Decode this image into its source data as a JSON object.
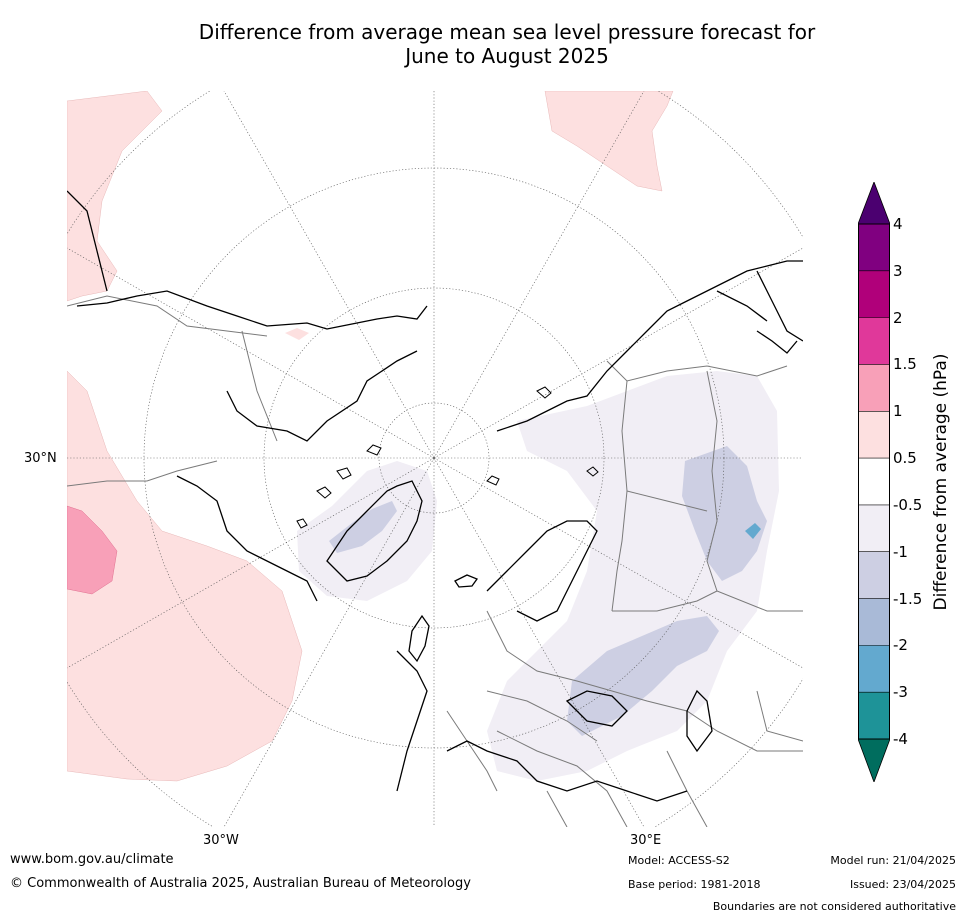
{
  "title": {
    "line1": "Difference from average mean sea level pressure forecast for",
    "line2": "June to August 2025"
  },
  "map": {
    "projection": "north-polar-stereographic",
    "graticule_labels": {
      "lat_30n": "30°N",
      "lon_30w": "30°W",
      "lon_30e": "30°E"
    }
  },
  "colorbar": {
    "label": "Difference from average (hPa)",
    "ticks": [
      "4",
      "3",
      "2",
      "1.5",
      "1",
      "0.5",
      "-0.5",
      "-1",
      "-1.5",
      "-2",
      "-3",
      "-4"
    ],
    "bands": [
      {
        "range": "3 to 4",
        "color": "#800080"
      },
      {
        "range": "2 to 3",
        "color": "#b0007a"
      },
      {
        "range": "1.5 to 2",
        "color": "#e0389a"
      },
      {
        "range": "1 to 1.5",
        "color": "#f8a0b8"
      },
      {
        "range": "0.5 to 1",
        "color": "#fde0e0"
      },
      {
        "range": "-0.5 to 0.5",
        "color": "#ffffff"
      },
      {
        "range": "-1 to -0.5",
        "color": "#f1eef5"
      },
      {
        "range": "-1.5 to -1",
        "color": "#cdcfe3"
      },
      {
        "range": "-2 to -1.5",
        "color": "#a9bad7"
      },
      {
        "range": "-3 to -2",
        "color": "#63a9cf"
      },
      {
        "range": "-4 to -3",
        "color": "#1e9398"
      }
    ],
    "over_color": "#4b0070",
    "under_color": "#006d5e"
  },
  "footer": {
    "website": "www.bom.gov.au/climate",
    "copyright": "© Commonwealth of Australia 2025, Australian Bureau of Meteorology",
    "model": "Model: ACCESS-S2",
    "base_period": "Base period: 1981-2018",
    "model_run": "Model run: 21/04/2025",
    "issued": "Issued: 23/04/2025",
    "disclaimer": "Boundaries are not considered authoritative"
  }
}
